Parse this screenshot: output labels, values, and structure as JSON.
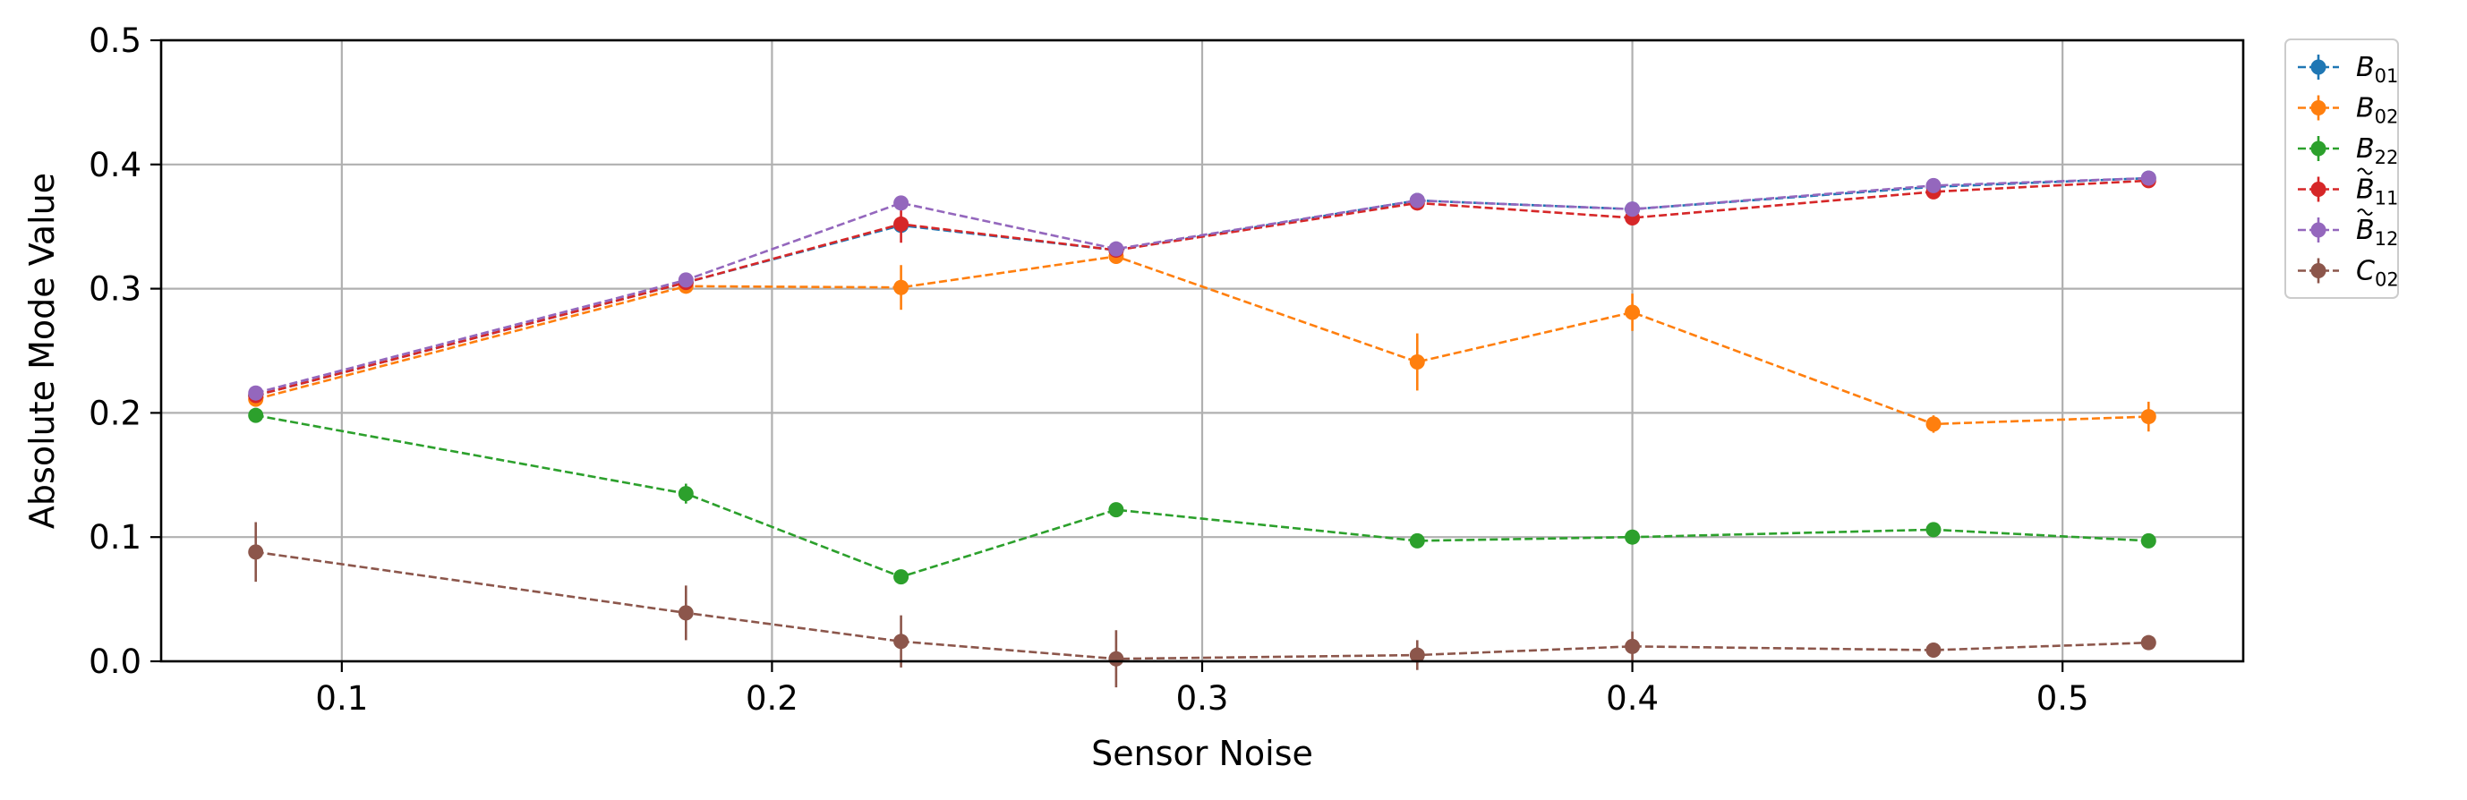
{
  "chart_data": {
    "type": "line",
    "xlabel": "Sensor Noise",
    "ylabel": "Absolute Mode Value",
    "xlim": [
      0.058,
      0.542
    ],
    "ylim": [
      0.0,
      0.5
    ],
    "xticks": [
      0.1,
      0.2,
      0.3,
      0.4,
      0.5
    ],
    "xtick_labels": [
      "0.1",
      "0.2",
      "0.3",
      "0.4",
      "0.5"
    ],
    "yticks": [
      0.0,
      0.1,
      0.2,
      0.3,
      0.4,
      0.5
    ],
    "ytick_labels": [
      "0.0",
      "0.1",
      "0.2",
      "0.3",
      "0.4",
      "0.5"
    ],
    "grid": true,
    "legend_position": "outside-right-top",
    "x": [
      0.08,
      0.18,
      0.23,
      0.28,
      0.35,
      0.4,
      0.47,
      0.52
    ],
    "series": [
      {
        "name": "B",
        "sub": "01",
        "tilde": false,
        "color": "#1f77b4",
        "linestyle": "dashed",
        "values": [
          0.214,
          0.305,
          0.351,
          0.331,
          0.371,
          0.364,
          0.382,
          0.389
        ],
        "errors": [
          0.004,
          0.004,
          0.006,
          0.004,
          0.004,
          0.004,
          0.003,
          0.003
        ]
      },
      {
        "name": "B",
        "sub": "02",
        "tilde": false,
        "color": "#ff7f0e",
        "linestyle": "dashed",
        "values": [
          0.211,
          0.302,
          0.301,
          0.326,
          0.241,
          0.281,
          0.191,
          0.197
        ],
        "errors": [
          0.004,
          0.004,
          0.018,
          0.006,
          0.023,
          0.015,
          0.007,
          0.012
        ]
      },
      {
        "name": "B",
        "sub": "22",
        "tilde": false,
        "color": "#2ca02c",
        "linestyle": "dashed",
        "values": [
          0.198,
          0.135,
          0.068,
          0.122,
          0.097,
          0.1,
          0.106,
          0.097
        ],
        "errors": [
          0.003,
          0.008,
          0.003,
          0.003,
          0.003,
          0.003,
          0.003,
          0.003
        ]
      },
      {
        "name": "B",
        "sub": "11",
        "tilde": true,
        "color": "#d62728",
        "linestyle": "dashed",
        "values": [
          0.214,
          0.305,
          0.352,
          0.331,
          0.369,
          0.357,
          0.378,
          0.387
        ],
        "errors": [
          0.004,
          0.004,
          0.015,
          0.004,
          0.004,
          0.005,
          0.004,
          0.004
        ]
      },
      {
        "name": "B",
        "sub": "12",
        "tilde": true,
        "color": "#9467bd",
        "linestyle": "dashed",
        "values": [
          0.216,
          0.307,
          0.369,
          0.332,
          0.371,
          0.364,
          0.383,
          0.389
        ],
        "errors": [
          0.004,
          0.004,
          0.003,
          0.003,
          0.003,
          0.003,
          0.003,
          0.003
        ]
      },
      {
        "name": "C",
        "sub": "02",
        "tilde": false,
        "color": "#8c564b",
        "linestyle": "dashed",
        "values": [
          0.088,
          0.039,
          0.016,
          0.002,
          0.005,
          0.012,
          0.009,
          0.015
        ],
        "errors": [
          0.024,
          0.022,
          0.021,
          0.023,
          0.012,
          0.012,
          0.005,
          0.004
        ]
      }
    ]
  }
}
